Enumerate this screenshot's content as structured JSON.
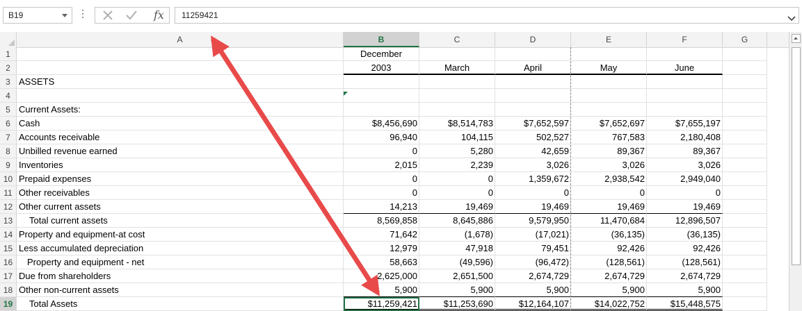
{
  "formula_bar": {
    "name_box": "B19",
    "fx_label": "fx",
    "formula": "11259421"
  },
  "columns": [
    {
      "id": "A",
      "label": "A"
    },
    {
      "id": "B",
      "label": "B"
    },
    {
      "id": "C",
      "label": "C"
    },
    {
      "id": "D",
      "label": "D"
    },
    {
      "id": "E",
      "label": "E"
    },
    {
      "id": "F",
      "label": "F"
    },
    {
      "id": "G",
      "label": "G"
    }
  ],
  "rows": [
    {
      "n": "1",
      "a": "",
      "b": "December",
      "c": "",
      "d": "",
      "e": "",
      "f": ""
    },
    {
      "n": "2",
      "a": "",
      "b": "2003",
      "c": "March",
      "d": "April",
      "e": "May",
      "f": "June"
    },
    {
      "n": "3",
      "a": "ASSETS",
      "b": "",
      "c": "",
      "d": "",
      "e": "",
      "f": ""
    },
    {
      "n": "4",
      "a": "",
      "b": "",
      "c": "",
      "d": "",
      "e": "",
      "f": ""
    },
    {
      "n": "5",
      "a": "Current Assets:",
      "b": "",
      "c": "",
      "d": "",
      "e": "",
      "f": ""
    },
    {
      "n": "6",
      "a": "Cash",
      "b": "$8,456,690",
      "c": "$8,514,783",
      "d": "$7,652,597",
      "e": "$7,652,697",
      "f": "$7,655,197"
    },
    {
      "n": "7",
      "a": "Accounts receivable",
      "b": "96,940",
      "c": "104,115",
      "d": "502,527",
      "e": "767,583",
      "f": "2,180,408"
    },
    {
      "n": "8",
      "a": "Unbilled revenue earned",
      "b": "0",
      "c": "5,280",
      "d": "42,659",
      "e": "89,367",
      "f": "89,367"
    },
    {
      "n": "9",
      "a": "Inventories",
      "b": "2,015",
      "c": "2,239",
      "d": "3,026",
      "e": "3,026",
      "f": "3,026"
    },
    {
      "n": "10",
      "a": "Prepaid expenses",
      "b": "0",
      "c": "0",
      "d": "1,359,672",
      "e": "2,938,542",
      "f": "2,949,040"
    },
    {
      "n": "11",
      "a": "Other receivables",
      "b": "0",
      "c": "0",
      "d": "0",
      "e": "0",
      "f": "0"
    },
    {
      "n": "12",
      "a": "Other current assets",
      "b": "14,213",
      "c": "19,469",
      "d": "19,469",
      "e": "19,469",
      "f": "19,469"
    },
    {
      "n": "13",
      "a": "Total current assets",
      "b": "8,569,858",
      "c": "8,645,886",
      "d": "9,579,950",
      "e": "11,470,684",
      "f": "12,896,507"
    },
    {
      "n": "14",
      "a": "Property and equipment-at cost",
      "b": "71,642",
      "c": "(1,678)",
      "d": "(17,021)",
      "e": "(36,135)",
      "f": "(36,135)"
    },
    {
      "n": "15",
      "a": "Less accumulated depreciation",
      "b": "12,979",
      "c": "47,918",
      "d": "79,451",
      "e": "92,426",
      "f": "92,426"
    },
    {
      "n": "16",
      "a": "Property and equipment - net",
      "b": "58,663",
      "c": "(49,596)",
      "d": "(96,472)",
      "e": "(128,561)",
      "f": "(128,561)"
    },
    {
      "n": "17",
      "a": "Due from shareholders",
      "b": "2,625,000",
      "c": "2,651,500",
      "d": "2,674,729",
      "e": "2,674,729",
      "f": "2,674,729"
    },
    {
      "n": "18",
      "a": "Other non-current assets",
      "b": "5,900",
      "c": "5,900",
      "d": "5,900",
      "e": "5,900",
      "f": "5,900"
    },
    {
      "n": "19",
      "a": "Total Assets",
      "b": "$11,259,421",
      "c": "$11,253,690",
      "d": "$12,164,107",
      "e": "$14,022,752",
      "f": "$15,448,575"
    }
  ],
  "selection": {
    "cell": "B19",
    "column": "B",
    "row": "19"
  },
  "annotation": {
    "color": "#e84a4a"
  }
}
